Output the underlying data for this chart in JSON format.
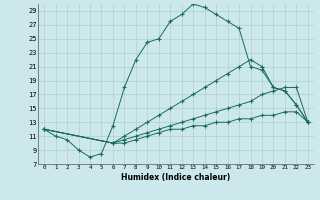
{
  "xlabel": "Humidex (Indice chaleur)",
  "background_color": "#cce8ec",
  "grid_color": "#b0cdd4",
  "line_color": "#1a6b5a",
  "xlim": [
    -0.5,
    23.5
  ],
  "ylim": [
    7,
    30
  ],
  "xticks": [
    0,
    1,
    2,
    3,
    4,
    5,
    6,
    7,
    8,
    9,
    10,
    11,
    12,
    13,
    14,
    15,
    16,
    17,
    18,
    19,
    20,
    21,
    22,
    23
  ],
  "yticks": [
    7,
    9,
    11,
    13,
    15,
    17,
    19,
    21,
    23,
    25,
    27,
    29
  ],
  "curves": [
    {
      "x": [
        0,
        1,
        2,
        3,
        4,
        5,
        6,
        7,
        8,
        9,
        10,
        11,
        12,
        13,
        14,
        15,
        16,
        17,
        18,
        19,
        20,
        21,
        22,
        23
      ],
      "y": [
        12,
        11,
        10.5,
        9,
        8,
        8.5,
        12.5,
        18,
        22,
        24.5,
        25,
        27.5,
        28.5,
        30,
        29.5,
        28.5,
        27.5,
        26.5,
        21,
        20.5,
        18,
        17.5,
        15.5,
        13
      ]
    },
    {
      "x": [
        0,
        6,
        7,
        8,
        9,
        10,
        11,
        12,
        13,
        14,
        15,
        16,
        17,
        18,
        19,
        20,
        21,
        22,
        23
      ],
      "y": [
        12,
        10,
        11,
        12,
        13,
        14,
        15,
        16,
        17,
        18,
        19,
        20,
        21,
        22,
        21,
        18,
        17.5,
        15.5,
        13
      ]
    },
    {
      "x": [
        0,
        6,
        7,
        8,
        9,
        10,
        11,
        12,
        13,
        14,
        15,
        16,
        17,
        18,
        19,
        20,
        21,
        22,
        23
      ],
      "y": [
        12,
        10,
        10.5,
        11,
        11.5,
        12,
        12.5,
        13,
        13.5,
        14,
        14.5,
        15,
        15.5,
        16,
        17,
        17.5,
        18,
        18,
        13
      ]
    },
    {
      "x": [
        0,
        6,
        7,
        8,
        9,
        10,
        11,
        12,
        13,
        14,
        15,
        16,
        17,
        18,
        19,
        20,
        21,
        22,
        23
      ],
      "y": [
        12,
        10,
        10,
        10.5,
        11,
        11.5,
        12,
        12,
        12.5,
        12.5,
        13,
        13,
        13.5,
        13.5,
        14,
        14,
        14.5,
        14.5,
        13
      ]
    }
  ]
}
